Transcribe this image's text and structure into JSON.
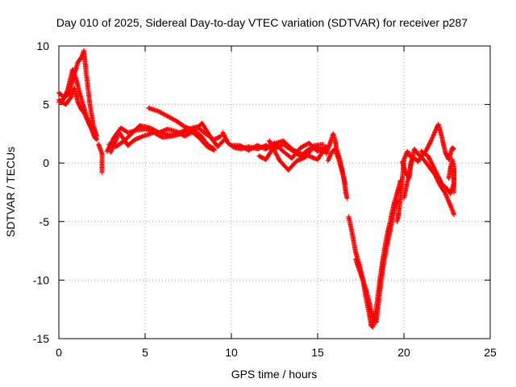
{
  "chart_data": {
    "type": "scatter",
    "title": "Day 010 of 2025, Sidereal Day-to-day VTEC variation (SDTVAR) for receiver p287",
    "xlabel": "GPS time / hours",
    "ylabel": "SDTVAR / TECUs",
    "xlim": [
      0,
      25
    ],
    "ylim": [
      -15,
      10
    ],
    "xticks": [
      0,
      5,
      10,
      15,
      20,
      25
    ],
    "yticks": [
      10,
      5,
      0,
      -5,
      -10,
      -15
    ],
    "grid": true,
    "marker": "plus",
    "color": "#ff0000",
    "series": [
      {
        "name": "SDTVAR",
        "tracks": [
          [
            [
              0.0,
              6.0
            ],
            [
              0.3,
              5.6
            ],
            [
              0.6,
              5.9
            ],
            [
              0.9,
              7.6
            ],
            [
              1.1,
              8.6
            ],
            [
              1.3,
              9.0
            ],
            [
              1.45,
              9.6
            ],
            [
              1.6,
              7.5
            ],
            [
              1.8,
              5.0
            ],
            [
              2.0,
              3.2
            ],
            [
              2.2,
              2.3
            ]
          ],
          [
            [
              0.0,
              5.2
            ],
            [
              0.2,
              5.3
            ],
            [
              0.5,
              6.2
            ],
            [
              0.8,
              8.0
            ],
            [
              1.0,
              7.2
            ],
            [
              1.2,
              6.0
            ],
            [
              1.4,
              5.0
            ],
            [
              1.6,
              4.0
            ],
            [
              1.8,
              3.3
            ],
            [
              2.0,
              2.5
            ],
            [
              2.2,
              2.0
            ]
          ],
          [
            [
              0.0,
              5.4
            ],
            [
              0.4,
              5.0
            ],
            [
              0.7,
              5.6
            ],
            [
              0.9,
              6.4
            ],
            [
              1.1,
              5.2
            ],
            [
              1.3,
              4.6
            ],
            [
              1.5,
              4.2
            ],
            [
              1.7,
              3.5
            ],
            [
              1.9,
              2.9
            ],
            [
              2.1,
              2.1
            ]
          ],
          [
            [
              2.3,
              1.6
            ],
            [
              2.5,
              0.8
            ],
            [
              2.5,
              -0.8
            ]
          ],
          [
            [
              2.8,
              1.0
            ],
            [
              3.2,
              2.2
            ],
            [
              3.6,
              3.0
            ],
            [
              4.0,
              2.6
            ],
            [
              4.5,
              2.8
            ],
            [
              5.0,
              2.9
            ],
            [
              5.5,
              2.7
            ],
            [
              6.0,
              2.5
            ],
            [
              6.5,
              2.4
            ],
            [
              7.0,
              2.6
            ],
            [
              7.5,
              2.9
            ],
            [
              8.0,
              3.1
            ],
            [
              8.5,
              2.5
            ],
            [
              9.0,
              2.0
            ],
            [
              9.4,
              2.3
            ]
          ],
          [
            [
              2.9,
              1.6
            ],
            [
              3.3,
              1.4
            ],
            [
              3.8,
              1.9
            ],
            [
              4.2,
              2.5
            ],
            [
              4.7,
              3.2
            ],
            [
              5.3,
              3.0
            ],
            [
              5.8,
              2.6
            ],
            [
              6.3,
              2.9
            ],
            [
              6.8,
              2.7
            ],
            [
              7.3,
              2.3
            ],
            [
              7.8,
              2.7
            ],
            [
              8.3,
              3.4
            ],
            [
              8.8,
              2.2
            ],
            [
              9.2,
              1.4
            ],
            [
              9.6,
              2.0
            ]
          ],
          [
            [
              3.0,
              0.9
            ],
            [
              3.5,
              2.6
            ],
            [
              4.0,
              1.5
            ],
            [
              4.4,
              2.0
            ],
            [
              4.9,
              2.3
            ],
            [
              5.5,
              2.6
            ],
            [
              6.0,
              2.2
            ],
            [
              6.6,
              2.3
            ],
            [
              7.1,
              2.5
            ],
            [
              7.6,
              2.8
            ],
            [
              8.1,
              2.2
            ],
            [
              8.6,
              1.4
            ],
            [
              9.0,
              1.1
            ]
          ],
          [
            [
              5.2,
              4.7
            ],
            [
              5.8,
              4.4
            ],
            [
              6.3,
              4.0
            ],
            [
              6.8,
              3.6
            ],
            [
              7.3,
              3.1
            ],
            [
              7.8,
              2.8
            ],
            [
              8.2,
              2.4
            ],
            [
              8.6,
              1.6
            ],
            [
              9.0,
              1.2
            ]
          ],
          [
            [
              9.5,
              2.6
            ],
            [
              9.8,
              1.7
            ],
            [
              10.2,
              1.3
            ],
            [
              10.6,
              1.2
            ],
            [
              11.0,
              1.4
            ],
            [
              11.5,
              1.2
            ],
            [
              12.0,
              1.5
            ],
            [
              12.5,
              1.2
            ],
            [
              13.0,
              1.6
            ],
            [
              13.5,
              1.1
            ],
            [
              14.0,
              0.6
            ],
            [
              14.5,
              1.2
            ],
            [
              15.0,
              1.3
            ],
            [
              15.5,
              1.0
            ]
          ],
          [
            [
              10.0,
              1.5
            ],
            [
              10.5,
              1.5
            ],
            [
              11.0,
              1.1
            ],
            [
              11.5,
              1.5
            ],
            [
              12.0,
              1.2
            ],
            [
              12.5,
              1.7
            ],
            [
              13.0,
              1.0
            ],
            [
              13.5,
              0.4
            ],
            [
              14.0,
              1.3
            ],
            [
              14.5,
              1.7
            ],
            [
              15.0,
              1.0
            ],
            [
              15.5,
              1.4
            ]
          ],
          [
            [
              11.6,
              0.6
            ],
            [
              12.0,
              0.3
            ],
            [
              12.6,
              1.7
            ],
            [
              13.0,
              1.9
            ],
            [
              13.5,
              1.2
            ],
            [
              14.0,
              0.8
            ],
            [
              14.5,
              0.6
            ],
            [
              15.0,
              0.3
            ],
            [
              15.4,
              1.2
            ]
          ],
          [
            [
              12.2,
              1.9
            ],
            [
              12.8,
              0.2
            ],
            [
              13.3,
              -0.6
            ],
            [
              13.8,
              0.2
            ],
            [
              14.3,
              0.5
            ],
            [
              14.8,
              1.5
            ],
            [
              15.3,
              1.6
            ]
          ],
          [
            [
              15.5,
              0.8
            ],
            [
              15.7,
              1.6
            ],
            [
              15.9,
              2.5
            ],
            [
              16.0,
              2.0
            ],
            [
              16.1,
              1.2
            ],
            [
              16.3,
              0.2
            ],
            [
              16.5,
              -1.2
            ],
            [
              16.6,
              -2.2
            ],
            [
              16.7,
              -3.0
            ]
          ],
          [
            [
              15.6,
              0.2
            ],
            [
              15.8,
              0.9
            ],
            [
              16.0,
              1.2
            ],
            [
              16.2,
              0.4
            ],
            [
              16.4,
              -0.6
            ],
            [
              16.6,
              -1.8
            ]
          ],
          [
            [
              16.8,
              -4.6
            ],
            [
              17.0,
              -6.0
            ],
            [
              17.2,
              -7.6
            ],
            [
              17.4,
              -8.6
            ],
            [
              17.6,
              -9.8
            ],
            [
              17.8,
              -11.5
            ],
            [
              18.0,
              -13.0
            ],
            [
              18.1,
              -13.9
            ],
            [
              18.2,
              -14.0
            ],
            [
              18.4,
              -12.4
            ],
            [
              18.6,
              -10.0
            ],
            [
              18.8,
              -8.0
            ],
            [
              19.0,
              -6.3
            ],
            [
              19.2,
              -5.0
            ],
            [
              19.4,
              -3.6
            ],
            [
              19.6,
              -2.6
            ],
            [
              19.8,
              -1.5
            ]
          ],
          [
            [
              17.2,
              -8.2
            ],
            [
              17.5,
              -9.5
            ],
            [
              17.8,
              -10.8
            ],
            [
              18.0,
              -12.0
            ],
            [
              18.2,
              -13.2
            ],
            [
              18.4,
              -13.6
            ],
            [
              18.6,
              -11.0
            ],
            [
              18.8,
              -8.8
            ],
            [
              19.0,
              -7.2
            ],
            [
              19.2,
              -5.8
            ],
            [
              19.4,
              -4.3
            ],
            [
              19.6,
              -3.2
            ]
          ],
          [
            [
              19.6,
              -5.0
            ],
            [
              19.7,
              -4.3
            ],
            [
              19.9,
              -1.5
            ],
            [
              20.0,
              0.3
            ],
            [
              20.2,
              1.0
            ],
            [
              20.4,
              0.5
            ]
          ],
          [
            [
              19.9,
              0.1
            ],
            [
              20.1,
              -0.8
            ],
            [
              20.3,
              -1.3
            ],
            [
              20.4,
              0.1
            ],
            [
              20.6,
              0.4
            ],
            [
              20.8,
              0.2
            ]
          ],
          [
            [
              20.0,
              -3.0
            ],
            [
              20.2,
              -1.6
            ],
            [
              20.4,
              -0.2
            ],
            [
              20.6,
              1.2
            ],
            [
              20.8,
              0.8
            ]
          ],
          [
            [
              20.8,
              0.1
            ],
            [
              21.0,
              0.5
            ],
            [
              21.3,
              1.1
            ],
            [
              21.6,
              2.0
            ],
            [
              21.9,
              3.0
            ],
            [
              22.0,
              3.3
            ],
            [
              22.2,
              2.2
            ],
            [
              22.4,
              0.9
            ],
            [
              22.6,
              0.3
            ],
            [
              22.8,
              1.3
            ],
            [
              22.9,
              1.2
            ]
          ],
          [
            [
              20.8,
              0.8
            ],
            [
              21.2,
              0.2
            ],
            [
              21.5,
              -0.4
            ],
            [
              21.8,
              -1.0
            ],
            [
              22.1,
              -1.9
            ],
            [
              22.4,
              -2.6
            ],
            [
              22.6,
              -3.3
            ],
            [
              22.8,
              -4.0
            ],
            [
              22.9,
              -4.4
            ]
          ],
          [
            [
              21.0,
              1.0
            ],
            [
              21.4,
              0.6
            ],
            [
              21.7,
              -0.3
            ],
            [
              22.0,
              -1.2
            ],
            [
              22.2,
              -1.8
            ],
            [
              22.5,
              -2.2
            ],
            [
              22.7,
              -2.6
            ],
            [
              22.9,
              -1.7
            ],
            [
              22.9,
              -0.5
            ]
          ],
          [
            [
              22.6,
              -1.3
            ],
            [
              22.7,
              -0.4
            ],
            [
              22.8,
              0.3
            ],
            [
              22.9,
              -0.3
            ],
            [
              22.9,
              -2.5
            ]
          ]
        ]
      }
    ]
  }
}
